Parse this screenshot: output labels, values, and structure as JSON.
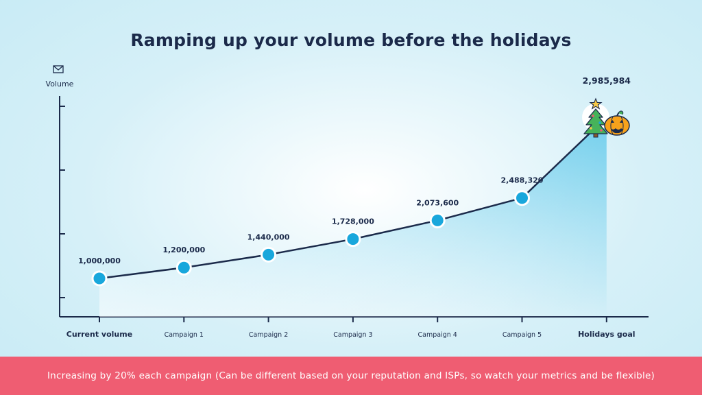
{
  "title": "Ramping up your volume before the holidays",
  "footer_text": "Increasing by 20% each campaign (Can be different based on your reputation and ISPs, so watch your metrics and be flexible)",
  "colors": {
    "line": "#1b2a4a",
    "point_fill": "#19a7dc",
    "area_top": "#7fd3ef",
    "footer_bg": "#ef5d72",
    "axis": "#1b2a4a"
  },
  "chart_data": {
    "type": "line",
    "title": "Ramping up your volume before the holidays",
    "ylabel": "Volume",
    "y_icon": "envelope-icon",
    "categories": [
      "Current volume",
      "Campaign 1",
      "Campaign 2",
      "Campaign 3",
      "Campaign 4",
      "Campaign 5",
      "Holidays goal"
    ],
    "values": [
      1000000,
      1200000,
      1440000,
      1728000,
      2073600,
      2488320,
      2985984
    ],
    "value_labels": [
      "1,000,000",
      "1,200,000",
      "1,440,000",
      "1,728,000",
      "2,073,600",
      "2,488,320",
      "2,985,984"
    ],
    "bold_categories": [
      "Current volume",
      "Holidays goal"
    ],
    "end_icons": [
      "christmas-tree-icon",
      "pumpkin-icon"
    ],
    "fill": "area-under-line",
    "grid": false
  }
}
